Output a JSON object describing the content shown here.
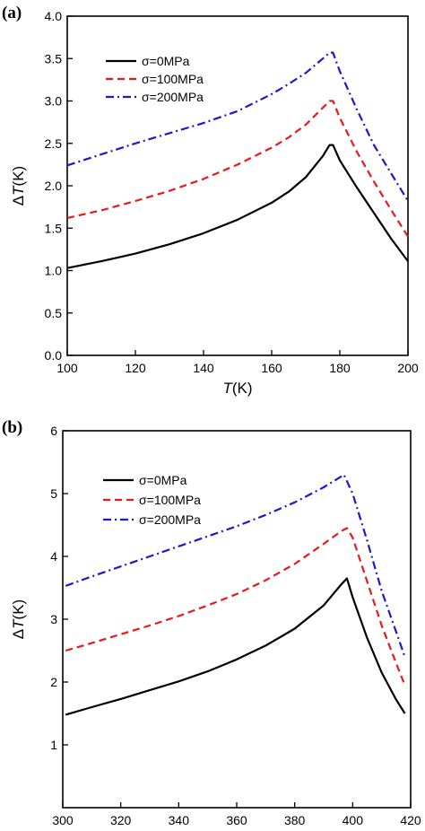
{
  "chart_data": [
    {
      "panel_label": "(a)",
      "type": "line",
      "xlabel": {
        "italic": "T",
        "rest": "(K)"
      },
      "ylabel": {
        "prefix": "Δ",
        "italic": "T",
        "rest": "(K)"
      },
      "xlim": [
        100,
        200
      ],
      "ylim": [
        0.0,
        4.0
      ],
      "xticks": [
        "100",
        "120",
        "140",
        "160",
        "180",
        "200"
      ],
      "yticks": [
        "0.0",
        "0.5",
        "1.0",
        "1.5",
        "2.0",
        "2.5",
        "3.0",
        "3.5",
        "4.0"
      ],
      "grid": false,
      "legend_position": "top-left",
      "series": [
        {
          "name": "σ=0MPa",
          "color": "#000000",
          "dash": "solid",
          "x": [
            100,
            110,
            120,
            130,
            140,
            150,
            160,
            165,
            170,
            175,
            177,
            178,
            180,
            185,
            190,
            195,
            200
          ],
          "y": [
            1.03,
            1.11,
            1.2,
            1.31,
            1.44,
            1.6,
            1.8,
            1.93,
            2.1,
            2.35,
            2.48,
            2.48,
            2.3,
            1.98,
            1.68,
            1.38,
            1.11
          ]
        },
        {
          "name": "σ=100MPa",
          "color": "#e8191c",
          "dash": "dashed",
          "x": [
            100,
            110,
            120,
            130,
            140,
            150,
            160,
            165,
            170,
            175,
            177,
            178,
            180,
            185,
            190,
            195,
            200
          ],
          "y": [
            1.62,
            1.71,
            1.82,
            1.94,
            2.08,
            2.25,
            2.45,
            2.57,
            2.72,
            2.92,
            3.0,
            3.0,
            2.8,
            2.4,
            2.05,
            1.72,
            1.4
          ]
        },
        {
          "name": "σ=200MPa",
          "color": "#1a1acc",
          "dash": "dashdot",
          "x": [
            100,
            110,
            120,
            130,
            140,
            150,
            160,
            165,
            170,
            175,
            177,
            178,
            180,
            185,
            190,
            195,
            200
          ],
          "y": [
            2.24,
            2.37,
            2.5,
            2.62,
            2.74,
            2.88,
            3.08,
            3.2,
            3.33,
            3.5,
            3.57,
            3.57,
            3.35,
            2.9,
            2.48,
            2.15,
            1.82
          ]
        }
      ]
    },
    {
      "panel_label": "(b)",
      "type": "line",
      "xlabel": {
        "italic": "T",
        "rest": "(K)"
      },
      "ylabel": {
        "prefix": "Δ",
        "italic": "T",
        "rest": "(K)"
      },
      "xlim": [
        300,
        420
      ],
      "ylim": [
        0,
        6
      ],
      "xticks": [
        "300",
        "320",
        "340",
        "360",
        "380",
        "400",
        "420"
      ],
      "yticks": [
        "1",
        "2",
        "3",
        "4",
        "5",
        "6"
      ],
      "grid": false,
      "legend_position": "top-left",
      "series": [
        {
          "name": "σ=0MPa",
          "color": "#000000",
          "dash": "solid",
          "x": [
            301,
            310,
            320,
            330,
            340,
            350,
            360,
            370,
            380,
            390,
            396,
            398,
            400,
            405,
            410,
            415,
            418
          ],
          "y": [
            1.48,
            1.6,
            1.73,
            1.87,
            2.01,
            2.17,
            2.36,
            2.58,
            2.85,
            3.22,
            3.55,
            3.65,
            3.35,
            2.7,
            2.15,
            1.72,
            1.5
          ]
        },
        {
          "name": "σ=100MPa",
          "color": "#e8191c",
          "dash": "dashed",
          "x": [
            301,
            310,
            320,
            330,
            340,
            350,
            360,
            370,
            380,
            390,
            396,
            398,
            400,
            405,
            410,
            415,
            418
          ],
          "y": [
            2.5,
            2.62,
            2.76,
            2.9,
            3.05,
            3.22,
            3.4,
            3.62,
            3.88,
            4.2,
            4.4,
            4.45,
            4.3,
            3.6,
            2.9,
            2.3,
            1.95
          ]
        },
        {
          "name": "σ=200MPa",
          "color": "#1a1acc",
          "dash": "dashdot",
          "x": [
            301,
            310,
            320,
            330,
            340,
            350,
            360,
            370,
            380,
            390,
            396,
            397,
            400,
            405,
            410,
            415,
            418
          ],
          "y": [
            3.53,
            3.68,
            3.84,
            4.0,
            4.16,
            4.32,
            4.48,
            4.66,
            4.86,
            5.1,
            5.27,
            5.3,
            5.0,
            4.25,
            3.45,
            2.8,
            2.4
          ]
        }
      ]
    }
  ]
}
